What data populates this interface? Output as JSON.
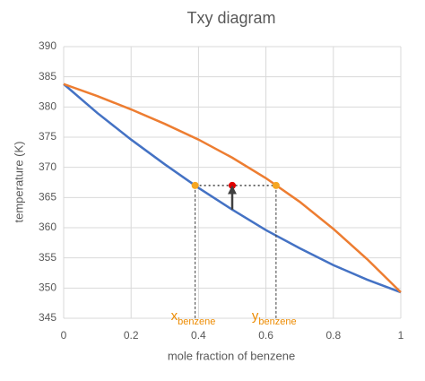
{
  "chart_data": {
    "type": "line",
    "title": "Txy diagram",
    "x_label": "mole fraction of benzene",
    "y_label": "temperature (K)",
    "xlim": [
      0,
      1
    ],
    "xticks": [
      0,
      0.2,
      0.4,
      0.6,
      0.8,
      1
    ],
    "ylim": [
      345,
      390
    ],
    "yticks": [
      345,
      350,
      355,
      360,
      365,
      370,
      375,
      380,
      385,
      390
    ],
    "grid": true,
    "series": [
      {
        "color": "#4472c4",
        "x": [
          0,
          0.1,
          0.2,
          0.3,
          0.4,
          0.5,
          0.6,
          0.7,
          0.8,
          0.9,
          1
        ],
        "values": [
          383.8,
          379,
          374.6,
          370.5,
          366.6,
          363,
          359.6,
          356.6,
          353.8,
          351.4,
          349.3
        ]
      },
      {
        "color": "#ed7d31",
        "x": [
          0,
          0.1,
          0.2,
          0.3,
          0.4,
          0.5,
          0.6,
          0.7,
          0.8,
          0.9,
          1
        ],
        "values": [
          383.8,
          381.8,
          379.6,
          377.2,
          374.6,
          371.6,
          368.2,
          364.3,
          359.8,
          354.8,
          349.3
        ]
      }
    ],
    "points": [
      {
        "x": 0.39,
        "y": 367,
        "color": "#f5a623",
        "label": "x",
        "sub": "benzene"
      },
      {
        "x": 0.63,
        "y": 367,
        "color": "#f5a623",
        "label": "y",
        "sub": "benzene"
      },
      {
        "x": 0.5,
        "y": 367,
        "color": "#e00000"
      }
    ],
    "arrow": {
      "x": 0.5,
      "from": 363,
      "to": 366.3
    }
  }
}
